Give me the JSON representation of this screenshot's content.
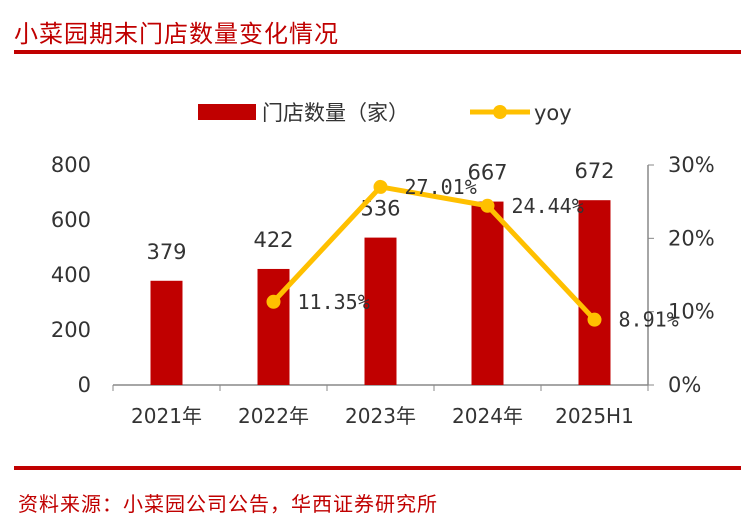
{
  "title": "小菜园期末门店数量变化情况",
  "source": "资料来源：小菜园公司公告，华西证券研究所",
  "colors": {
    "bar": "#c00000",
    "line": "#ffc000",
    "accent": "#c00000"
  },
  "chart_data": {
    "type": "bar",
    "categories": [
      "2021年",
      "2022年",
      "2023年",
      "2024年",
      "2025H1"
    ],
    "series": [
      {
        "name": "门店数量（家）",
        "type": "bar",
        "axis": "left",
        "values": [
          379,
          422,
          536,
          667,
          672
        ],
        "labels": [
          "379",
          "422",
          "536",
          "667",
          "672"
        ]
      },
      {
        "name": "yoy",
        "type": "line",
        "axis": "right",
        "values": [
          null,
          0.1135,
          0.2701,
          0.2444,
          0.0891
        ],
        "labels": [
          null,
          "11.35%",
          "27.01%",
          "24.44%",
          "8.91%"
        ]
      }
    ],
    "y_left": {
      "min": 0,
      "max": 800,
      "ticks": [
        "0",
        "200",
        "400",
        "600",
        "800"
      ]
    },
    "y_right": {
      "min": 0,
      "max": 0.3,
      "ticks": [
        "0%",
        "10%",
        "20%",
        "30%"
      ]
    },
    "legend_position": "top-center",
    "grid": false
  }
}
